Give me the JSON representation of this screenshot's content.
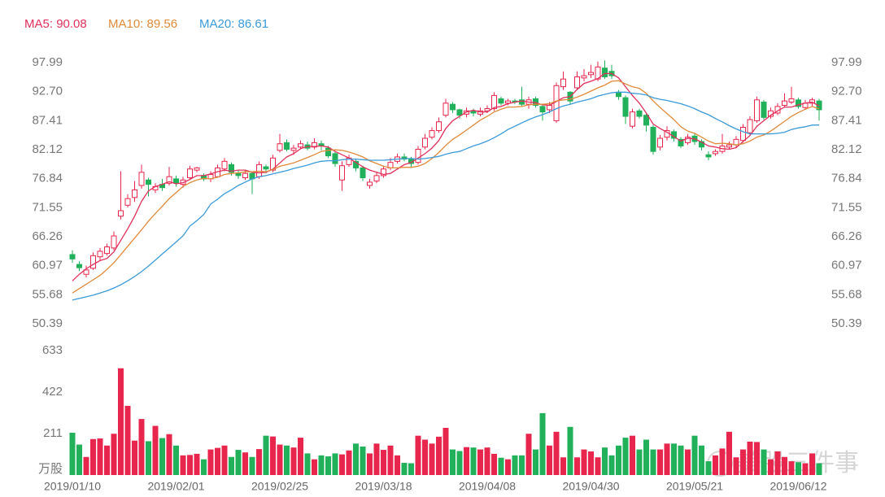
{
  "chart_data": {
    "type": "candlestick",
    "categories": [
      "2019/01/10",
      null,
      null,
      null,
      null,
      null,
      null,
      null,
      null,
      null,
      null,
      null,
      null,
      null,
      null,
      "2019/02/01",
      null,
      null,
      null,
      null,
      null,
      null,
      null,
      null,
      null,
      null,
      null,
      null,
      null,
      null,
      "2019/02/25",
      null,
      null,
      null,
      null,
      null,
      null,
      null,
      null,
      null,
      null,
      null,
      null,
      null,
      null,
      "2019/03/18",
      null,
      null,
      null,
      null,
      null,
      null,
      null,
      null,
      null,
      null,
      null,
      null,
      null,
      null,
      "2019/04/08",
      null,
      null,
      null,
      null,
      null,
      null,
      null,
      null,
      null,
      null,
      null,
      null,
      null,
      null,
      "2019/04/30",
      null,
      null,
      null,
      null,
      null,
      null,
      null,
      null,
      null,
      null,
      null,
      null,
      null,
      null,
      "2019/05/21",
      null,
      null,
      null,
      null,
      null,
      null,
      null,
      null,
      null,
      null,
      null,
      null,
      null,
      null,
      "2019/06/12",
      null,
      null,
      null
    ],
    "open": [
      63.0,
      61.2,
      59.4,
      60.5,
      62.6,
      63.2,
      64.2,
      70.0,
      72.0,
      73.4,
      75.6,
      76.6,
      74.8,
      75.8,
      76.0,
      76.8,
      75.8,
      77.0,
      78.4,
      77.4,
      76.8,
      77.2,
      78.6,
      79.4,
      77.8,
      77.0,
      77.8,
      77.2,
      79.0,
      78.4,
      82.0,
      83.4,
      82.0,
      82.6,
      83.0,
      82.6,
      83.2,
      82.4,
      81.4,
      76.6,
      79.4,
      80.0,
      78.8,
      75.6,
      76.4,
      77.4,
      78.8,
      80.0,
      80.8,
      80.4,
      79.8,
      82.6,
      84.4,
      85.6,
      88.4,
      90.4,
      89.4,
      88.6,
      89.2,
      88.6,
      89.2,
      89.6,
      91.4,
      90.6,
      91.0,
      91.2,
      90.4,
      91.4,
      90.0,
      89.4,
      87.4,
      93.6,
      92.6,
      93.4,
      95.2,
      95.8,
      95.0,
      97.0,
      96.4,
      92.6,
      91.6,
      86.4,
      89.2,
      88.4,
      86.2,
      82.6,
      84.4,
      85.4,
      84.0,
      83.4,
      84.6,
      83.6,
      81.2,
      81.4,
      81.8,
      82.6,
      83.0,
      83.8,
      85.2,
      87.4,
      90.8,
      88.2,
      88.8,
      90.2,
      90.8,
      91.2,
      89.8,
      90.6,
      91.0
    ],
    "high": [
      63.8,
      61.8,
      61.0,
      63.4,
      64.2,
      65.0,
      67.2,
      78.2,
      74.0,
      76.4,
      79.4,
      77.0,
      76.0,
      76.8,
      79.0,
      77.4,
      77.2,
      79.2,
      79.0,
      77.8,
      78.2,
      79.4,
      80.6,
      79.8,
      78.4,
      78.4,
      78.2,
      80.0,
      79.4,
      81.2,
      85.0,
      84.0,
      83.0,
      83.8,
      83.6,
      84.2,
      83.8,
      82.8,
      81.8,
      80.0,
      81.2,
      80.4,
      79.2,
      76.8,
      78.0,
      79.2,
      80.6,
      81.4,
      81.4,
      80.8,
      82.8,
      85.0,
      86.2,
      88.0,
      91.4,
      90.8,
      89.6,
      89.8,
      89.6,
      89.8,
      90.2,
      92.6,
      91.8,
      91.4,
      91.4,
      93.6,
      91.8,
      91.8,
      90.4,
      90.8,
      94.4,
      96.4,
      92.8,
      96.4,
      96.8,
      97.6,
      98.2,
      98.4,
      97.6,
      93.0,
      92.0,
      89.6,
      89.6,
      88.8,
      86.6,
      84.8,
      86.4,
      85.8,
      84.4,
      85.0,
      85.2,
      84.0,
      81.8,
      82.2,
      85.0,
      83.6,
      84.6,
      86.8,
      88.2,
      91.8,
      91.2,
      89.8,
      90.6,
      92.4,
      93.6,
      91.6,
      91.2,
      91.6,
      91.4
    ],
    "low": [
      61.5,
      60.0,
      58.8,
      60.2,
      62.0,
      62.8,
      63.8,
      69.4,
      71.6,
      72.6,
      75.0,
      73.6,
      74.2,
      74.6,
      75.6,
      75.4,
      75.2,
      76.6,
      78.0,
      76.4,
      76.2,
      77.0,
      78.2,
      77.4,
      76.8,
      76.6,
      74.0,
      76.8,
      77.8,
      78.0,
      81.6,
      81.8,
      81.2,
      82.2,
      82.0,
      82.2,
      82.0,
      80.6,
      79.0,
      74.6,
      79.0,
      78.2,
      76.4,
      75.0,
      76.0,
      77.0,
      78.4,
      79.6,
      80.0,
      79.0,
      79.4,
      82.2,
      84.0,
      85.2,
      88.0,
      88.8,
      87.8,
      88.0,
      88.2,
      88.2,
      88.8,
      89.2,
      90.2,
      90.2,
      90.4,
      90.0,
      89.6,
      89.8,
      87.4,
      88.8,
      87.0,
      93.0,
      90.4,
      93.0,
      94.6,
      95.2,
      94.6,
      95.0,
      95.0,
      91.2,
      86.8,
      86.0,
      87.8,
      85.4,
      81.2,
      82.0,
      83.8,
      83.6,
      82.4,
      83.0,
      83.0,
      82.0,
      80.2,
      81.0,
      81.4,
      82.2,
      82.6,
      83.4,
      84.8,
      87.0,
      87.6,
      87.8,
      88.4,
      89.8,
      90.4,
      89.6,
      89.4,
      90.0,
      87.4
    ],
    "close": [
      62.2,
      60.6,
      60.2,
      62.8,
      63.6,
      64.4,
      66.4,
      71.0,
      73.2,
      74.8,
      78.0,
      75.8,
      75.4,
      75.2,
      77.2,
      76.0,
      76.6,
      78.6,
      78.8,
      76.8,
      77.6,
      78.8,
      80.0,
      78.0,
      77.4,
      77.8,
      76.8,
      79.4,
      78.6,
      80.6,
      83.2,
      82.2,
      82.4,
      83.2,
      82.4,
      83.4,
      82.8,
      81.0,
      79.6,
      79.2,
      80.6,
      78.8,
      77.0,
      76.2,
      77.4,
      78.6,
      79.8,
      80.8,
      80.4,
      79.6,
      82.2,
      84.2,
      85.6,
      87.2,
      90.6,
      89.4,
      88.4,
      89.2,
      88.8,
      89.2,
      89.6,
      92.0,
      90.6,
      91.0,
      90.8,
      90.4,
      91.2,
      90.2,
      89.0,
      90.2,
      93.8,
      95.0,
      91.0,
      95.4,
      95.6,
      96.2,
      97.2,
      95.4,
      95.6,
      91.8,
      88.2,
      89.0,
      88.2,
      86.6,
      81.8,
      84.2,
      85.6,
      84.2,
      82.8,
      84.4,
      83.6,
      82.6,
      80.8,
      81.8,
      82.8,
      83.0,
      84.0,
      86.2,
      87.6,
      91.2,
      88.0,
      89.2,
      90.0,
      91.0,
      91.4,
      90.0,
      90.6,
      91.2,
      89.4
    ],
    "up_color": "#e8254c",
    "down_color": "#21b15a",
    "ylim": [
      50.39,
      97.99
    ],
    "yticks": [
      50.39,
      {
        "value": 55.68,
        "label": "55.68"
      },
      60.97,
      66.26,
      71.55,
      76.84,
      82.12,
      87.41,
      {
        "value": 92.7,
        "label": "92.70"
      },
      97.99
    ],
    "series": [
      {
        "name": "MA5:",
        "color": "#e0305a",
        "values": [
          58.2,
          59.4,
          60.4,
          61.2,
          61.9,
          62.3,
          63.5,
          65.6,
          67.7,
          70.0,
          72.7,
          74.6,
          75.4,
          75.8,
          76.3,
          75.9,
          76.1,
          76.7,
          77.4,
          77.4,
          77.7,
          78.1,
          78.4,
          78.2,
          78.4,
          78.4,
          78.0,
          77.9,
          78.0,
          78.6,
          79.7,
          80.8,
          81.4,
          82.3,
          82.7,
          82.7,
          82.8,
          82.6,
          81.8,
          81.2,
          80.6,
          79.8,
          79.0,
          78.4,
          78.0,
          77.6,
          77.8,
          78.6,
          79.4,
          79.8,
          80.6,
          81.4,
          82.4,
          83.8,
          86.0,
          87.4,
          88.2,
          89.0,
          89.3,
          89.0,
          89.0,
          89.8,
          90.0,
          90.5,
          90.8,
          91.0,
          90.8,
          90.7,
          90.3,
          90.2,
          90.9,
          91.6,
          91.8,
          93.1,
          94.2,
          94.6,
          95.1,
          96.0,
          96.0,
          95.2,
          93.6,
          92.0,
          90.6,
          88.8,
          86.8,
          86.0,
          85.3,
          84.5,
          83.7,
          84.2,
          84.1,
          83.5,
          82.8,
          82.6,
          82.3,
          82.2,
          82.5,
          83.6,
          84.7,
          86.4,
          87.4,
          88.4,
          89.2,
          89.9,
          89.9,
          90.3,
          90.6,
          90.8,
          90.08
        ]
      },
      {
        "name": "MA10:",
        "color": "#e08a3a",
        "values": [
          56.0,
          56.8,
          57.6,
          58.4,
          59.2,
          60.3,
          61.5,
          63.0,
          64.5,
          66.0,
          67.5,
          69.1,
          70.5,
          71.8,
          73.2,
          74.3,
          75.4,
          76.1,
          76.6,
          76.9,
          76.8,
          77.1,
          77.6,
          77.8,
          77.9,
          78.1,
          78.1,
          78.2,
          78.1,
          78.5,
          79.1,
          79.4,
          79.7,
          80.2,
          80.7,
          81.2,
          81.8,
          82.0,
          82.1,
          82.0,
          81.7,
          81.3,
          80.8,
          80.1,
          79.6,
          79.1,
          78.8,
          78.8,
          78.9,
          78.9,
          79.1,
          79.6,
          80.5,
          81.6,
          82.9,
          84.0,
          84.8,
          85.7,
          86.6,
          87.5,
          88.2,
          89.0,
          89.5,
          89.9,
          89.9,
          90.0,
          90.3,
          90.4,
          90.4,
          90.5,
          91.0,
          91.2,
          91.3,
          91.7,
          92.2,
          92.8,
          93.4,
          93.9,
          94.6,
          94.7,
          94.1,
          93.6,
          93.3,
          92.4,
          91.0,
          89.8,
          88.7,
          87.6,
          86.3,
          85.5,
          85.1,
          84.4,
          83.7,
          83.2,
          83.3,
          83.2,
          83.0,
          83.2,
          83.7,
          84.4,
          84.8,
          85.5,
          86.4,
          87.3,
          88.2,
          88.9,
          89.5,
          90.0,
          89.56
        ]
      },
      {
        "name": "MA20:",
        "color": "#3a9ad9",
        "values": [
          54.7,
          55.0,
          55.3,
          55.6,
          56.0,
          56.4,
          56.9,
          57.5,
          58.2,
          59.0,
          59.9,
          60.9,
          62.0,
          63.1,
          64.2,
          65.3,
          66.4,
          68.2,
          69.2,
          70.3,
          72.2,
          73.1,
          74.1,
          74.8,
          75.6,
          76.2,
          76.8,
          77.2,
          77.4,
          77.7,
          78.0,
          78.3,
          78.7,
          79.0,
          79.3,
          79.7,
          80.0,
          80.1,
          80.1,
          80.3,
          80.4,
          80.4,
          80.3,
          80.2,
          80.2,
          80.2,
          80.3,
          80.4,
          80.5,
          80.5,
          80.4,
          80.5,
          80.7,
          80.9,
          81.3,
          81.6,
          81.8,
          82.3,
          82.8,
          83.2,
          83.7,
          84.3,
          85.0,
          85.8,
          86.4,
          87.0,
          87.6,
          88.1,
          88.5,
          89.0,
          89.6,
          90.1,
          90.4,
          90.8,
          91.1,
          91.4,
          91.9,
          92.2,
          92.5,
          92.6,
          92.6,
          92.4,
          92.3,
          92.1,
          91.6,
          91.3,
          91.1,
          90.8,
          90.5,
          90.1,
          89.6,
          89.0,
          88.5,
          87.8,
          87.2,
          86.5,
          85.9,
          85.4,
          85.0,
          85.0,
          85.0,
          85.0,
          85.1,
          85.3,
          85.8,
          86.1,
          86.3,
          86.6,
          86.61
        ]
      }
    ],
    "volume": {
      "values": [
        215,
        155,
        92,
        183,
        186,
        150,
        210,
        543,
        352,
        175,
        285,
        172,
        250,
        188,
        208,
        150,
        100,
        102,
        108,
        80,
        130,
        138,
        150,
        92,
        128,
        115,
        92,
        132,
        200,
        196,
        155,
        150,
        140,
        190,
        110,
        80,
        100,
        95,
        110,
        105,
        125,
        160,
        145,
        110,
        160,
        128,
        150,
        100,
        62,
        60,
        200,
        180,
        160,
        195,
        240,
        130,
        122,
        142,
        140,
        130,
        140,
        108,
        88,
        80,
        100,
        100,
        210,
        130,
        315,
        150,
        220,
        90,
        245,
        90,
        130,
        120,
        90,
        140,
        100,
        150,
        190,
        200,
        130,
        180,
        130,
        130,
        160,
        160,
        150,
        130,
        200,
        150,
        70,
        100,
        135,
        220,
        90,
        130,
        170,
        168,
        130,
        80,
        120,
        92,
        70,
        65,
        60,
        110,
        60
      ],
      "ylim": [
        0,
        633
      ],
      "yticks": [
        211,
        422,
        633
      ],
      "unit_label": "万股"
    }
  },
  "watermark": "美股三件事"
}
